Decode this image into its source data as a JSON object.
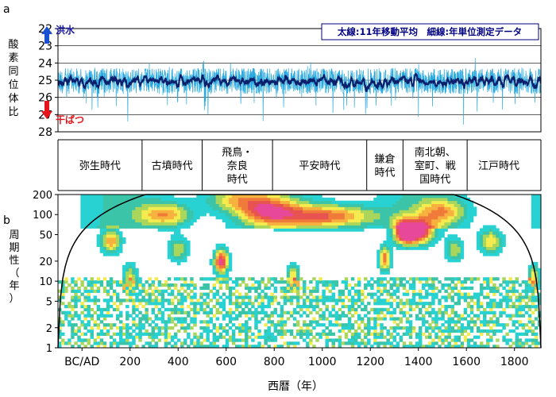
{
  "chart_data": [
    {
      "panel_letter": "a",
      "type": "line",
      "ylabel": "酸素同位体比",
      "ylim": [
        28,
        22
      ],
      "yticks": [
        22,
        23,
        24,
        25,
        26,
        27,
        28
      ],
      "y_inverted": true,
      "xlim": [
        -100,
        1910
      ],
      "annotations": {
        "top": {
          "text": "洪水",
          "color": "#1a1aa6",
          "arrow": "up"
        },
        "bottom": {
          "text": "干ばつ",
          "color": "#e8141b",
          "arrow": "down"
        }
      },
      "legend": {
        "text": "太線:11年移動平均　細線:年単位測定データ",
        "position": "top-right",
        "color": "#000080"
      },
      "series": [
        {
          "label": "細線",
          "color": "#29a9e0",
          "noise": 0.95,
          "base": 25.05
        },
        {
          "label": "太線",
          "color": "#0b1f6b",
          "noise": 0.45,
          "base": 25.05
        }
      ],
      "grid": true
    },
    {
      "panel_letter": "",
      "type": "table",
      "periods": [
        {
          "label": "弥生時代",
          "start": -100,
          "end": 250
        },
        {
          "label": "古墳時代",
          "start": 250,
          "end": 500
        },
        {
          "label": "飛鳥・\n奈良\n時代",
          "start": 500,
          "end": 793
        },
        {
          "label": "平安時代",
          "start": 793,
          "end": 1185
        },
        {
          "label": "鎌倉\n時代",
          "start": 1185,
          "end": 1336
        },
        {
          "label": "南北朝、\n室町、戦\n国時代",
          "start": 1336,
          "end": 1603
        },
        {
          "label": "江戸時代",
          "start": 1603,
          "end": 1867
        }
      ]
    },
    {
      "panel_letter": "b",
      "type": "heatmap",
      "ylabel": "周期性（年）",
      "xlabel": "西暦（年）",
      "xlim": [
        -100,
        1910
      ],
      "xticks": [
        0,
        200,
        400,
        600,
        800,
        1000,
        1200,
        1400,
        1600,
        1800
      ],
      "xtick_labels": [
        "BC/AD",
        "200",
        "400",
        "600",
        "800",
        "1000",
        "1200",
        "1400",
        "1600",
        "1800"
      ],
      "ylim": [
        1,
        200
      ],
      "y_scale": "log",
      "yticks": [
        1,
        2,
        5,
        10,
        20,
        50,
        100,
        200
      ],
      "levels_colors": [
        "#ffffff",
        "#28d2d2",
        "#3bc4a8",
        "#a9d65b",
        "#f4ec4f",
        "#f6b13e",
        "#ef7a3a",
        "#e85352",
        "#e8489a"
      ]
    }
  ]
}
